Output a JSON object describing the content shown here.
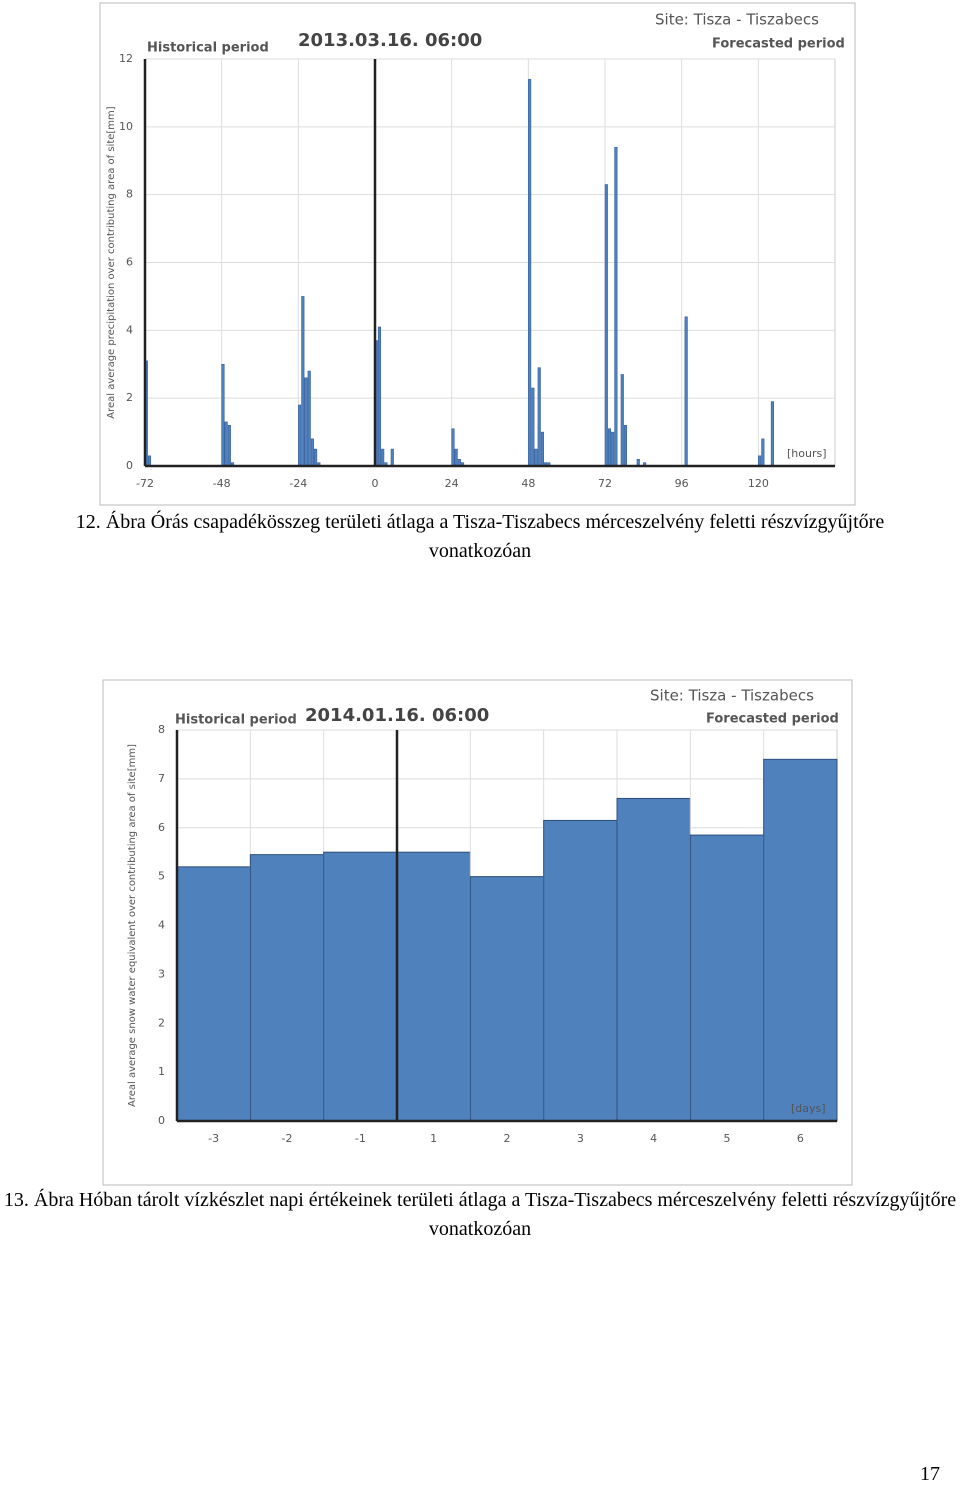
{
  "chart_data": [
    {
      "type": "bar",
      "header": "Historical period",
      "date": "2013.03.16. 06:00",
      "site": "Site: Tisza - Tiszabecs",
      "subheader": "Forecasted period",
      "unit_label": "[hours]",
      "y_label": "Areal average precipitation over contributing area of site[mm]",
      "x": [
        -72,
        -71,
        -48,
        -47,
        -46,
        -45,
        -24,
        -23,
        -22,
        -21,
        -20,
        -19,
        -18,
        0,
        1,
        2,
        3,
        5,
        24,
        25,
        26,
        27,
        48,
        49,
        50,
        51,
        52,
        53,
        54,
        72,
        73,
        74,
        75,
        77,
        78,
        82,
        84,
        97,
        120,
        121,
        124
      ],
      "values": [
        3.1,
        0.3,
        3.0,
        1.3,
        1.2,
        0.1,
        1.8,
        5.0,
        2.6,
        2.8,
        0.8,
        0.5,
        0.1,
        3.7,
        4.1,
        0.5,
        0.1,
        0.5,
        1.1,
        0.5,
        0.2,
        0.1,
        11.4,
        2.3,
        0.5,
        2.9,
        1.0,
        0.1,
        0.1,
        8.3,
        1.1,
        1.0,
        9.4,
        2.7,
        1.2,
        0.2,
        0.1,
        4.4,
        0.3,
        0.8,
        1.9
      ],
      "color": "#4f81bd",
      "xlim": [
        -72,
        144
      ],
      "xticks": [
        -72,
        -48,
        -24,
        0,
        24,
        48,
        72,
        96,
        120
      ],
      "ylim": [
        0,
        12
      ],
      "yticks": [
        0,
        2,
        4,
        6,
        8,
        10,
        12
      ],
      "forecast_start": 0,
      "grid": true
    },
    {
      "type": "bar",
      "header": "Historical period",
      "date": "2014.01.16. 06:00",
      "site": "Site: Tisza - Tiszabecs",
      "subheader": "Forecasted period",
      "unit_label": "[days]",
      "y_label": "Areal average snow water equivalent over contributing area of site[mm]",
      "categories": [
        "-3",
        "-2",
        "-1",
        "1",
        "2",
        "3",
        "4",
        "5",
        "6"
      ],
      "values": [
        5.2,
        5.45,
        5.5,
        5.5,
        5.0,
        6.15,
        6.6,
        5.85,
        7.4
      ],
      "color": "#4f81bd",
      "ylim": [
        0,
        8
      ],
      "yticks": [
        0,
        1,
        2,
        3,
        4,
        5,
        6,
        7,
        8
      ],
      "forecast_start_index": 3,
      "grid": true
    }
  ],
  "captions": [
    "12. Ábra Órás csapadékösszeg területi átlaga a Tisza-Tiszabecs mérceszelvény feletti részvízgyűjtőre vonatkozóan",
    "13. Ábra Hóban tárolt vízkészlet napi értékeinek területi átlaga a Tisza-Tiszabecs mérceszelvény feletti részvízgyűjtőre vonatkozóan"
  ],
  "page_number": "17"
}
